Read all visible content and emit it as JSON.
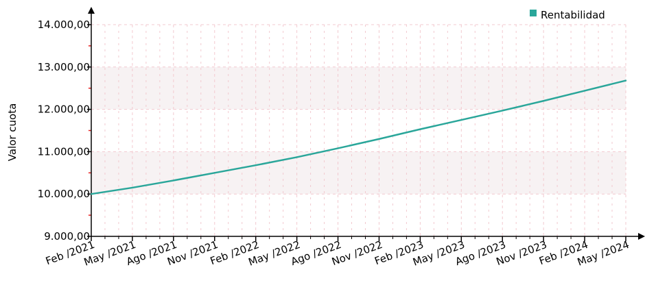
{
  "chart_data": {
    "type": "line",
    "title": "",
    "xlabel": "",
    "ylabel": "Valor cuota",
    "ylim": [
      9000,
      14000
    ],
    "yticks": [
      9000,
      10000,
      11000,
      12000,
      13000,
      14000
    ],
    "ytick_labels": [
      "9.000,00",
      "10.000,00",
      "11.000,00",
      "12.000,00",
      "13.000,00",
      "14.000,00"
    ],
    "categories": [
      "Feb /2021",
      "May /2021",
      "Ago /2021",
      "Nov /2021",
      "Feb /2022",
      "May /2022",
      "Ago /2022",
      "Nov /2022",
      "Feb /2023",
      "May /2023",
      "Ago /2023",
      "Nov /2023",
      "Feb /2024",
      "May /2024"
    ],
    "series": [
      {
        "name": "Rentabilidad",
        "color": "#2aa69a",
        "values": [
          10000,
          10150,
          10320,
          10500,
          10680,
          10870,
          11080,
          11300,
          11530,
          11750,
          11970,
          12200,
          12440,
          12680
        ]
      }
    ],
    "grid": true,
    "legend": "top-right",
    "colors": {
      "band": "#f7f2f3",
      "grid": "#f2c9cf",
      "axis": "#000000",
      "minor_tick": "#e02020"
    }
  }
}
